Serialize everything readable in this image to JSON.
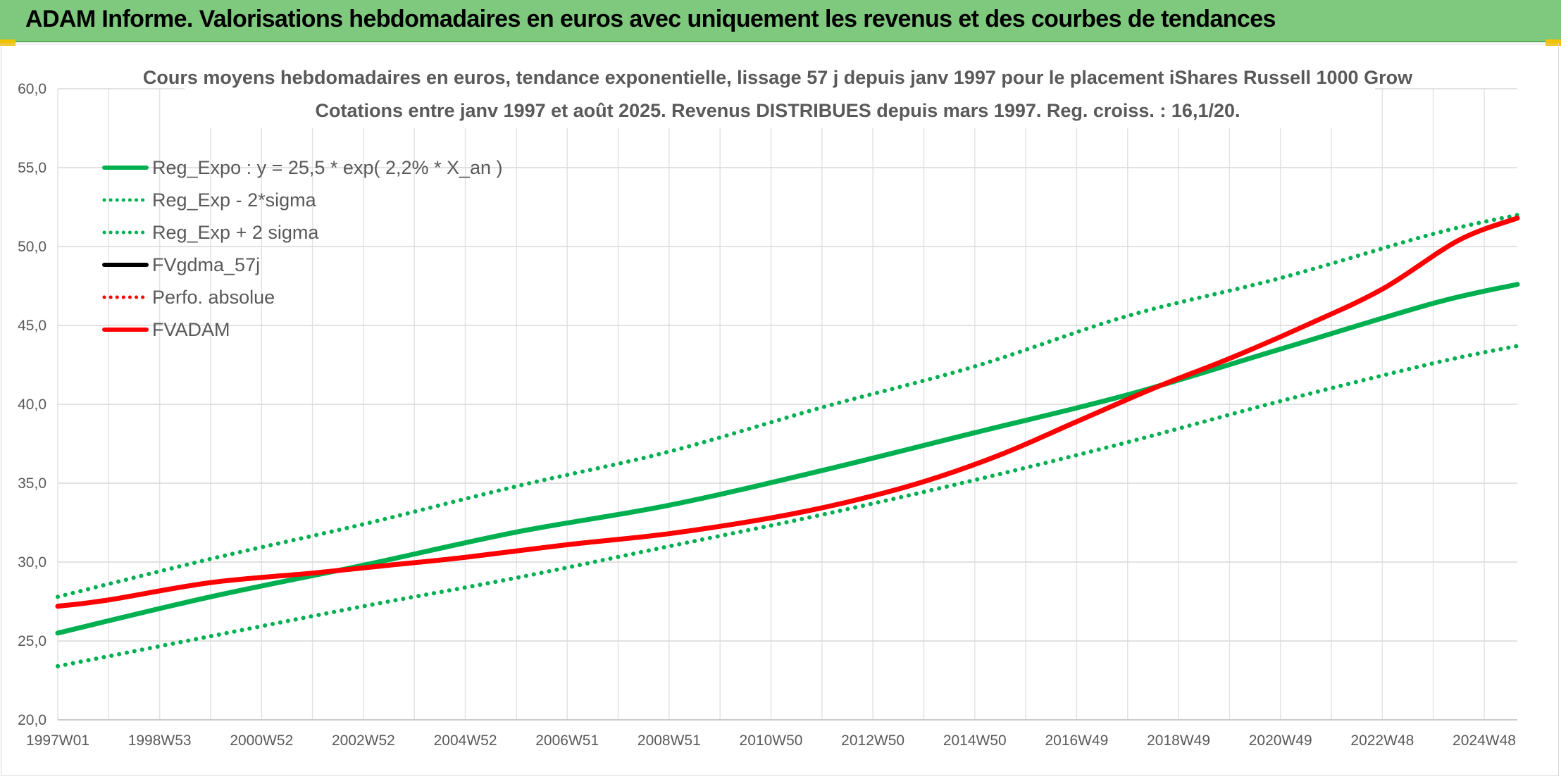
{
  "header": {
    "title": "ADAM Informe. Valorisations hebdomadaires en euros avec uniquement les revenus et des courbes de tendances",
    "background_color": "#7fc97f"
  },
  "chart_data": {
    "type": "line",
    "title": "Cours moyens hebdomadaires en euros, tendance exponentielle, lissage 57 j depuis janv 1997 pour le placement iShares Russell 1000 Grow",
    "subtitle": "Cotations entre janv 1997 et août 2025. Revenus DISTRIBUES depuis mars 1997. Reg. croiss. : 16,1/20.",
    "xlabel": "",
    "ylabel": "",
    "x_range": [
      1997.0,
      2025.65
    ],
    "ylim": [
      20,
      60
    ],
    "y_ticks": [
      "20,0",
      "25,0",
      "30,0",
      "35,0",
      "40,0",
      "45,0",
      "50,0",
      "55,0",
      "60,0"
    ],
    "x_tick_labels": [
      "1997W01",
      "1998W53",
      "2000W52",
      "2002W52",
      "2004W52",
      "2006W51",
      "2008W51",
      "2010W50",
      "2012W50",
      "2014W50",
      "2016W49",
      "2018W49",
      "2020W49",
      "2022W48",
      "2024W48"
    ],
    "x_tick_years": [
      1997.0,
      1999.0,
      2001.0,
      2003.0,
      2005.0,
      2007.0,
      2009.0,
      2011.0,
      2013.0,
      2015.0,
      2017.0,
      2019.0,
      2021.0,
      2023.0,
      2025.0
    ],
    "grid": true,
    "legend_position": "top-left",
    "series": [
      {
        "name": "Reg_Expo : y = 25,5 * exp( 2,2% *  X_an )",
        "color": "#00b050",
        "style": "solid",
        "x": [
          1997.0,
          2000.0,
          2003.0,
          2006.0,
          2009.0,
          2012.0,
          2015.0,
          2018.0,
          2021.0,
          2024.0,
          2025.65
        ],
        "values": [
          25.5,
          27.8,
          29.8,
          31.9,
          33.6,
          35.8,
          38.2,
          40.6,
          43.5,
          46.4,
          47.6
        ]
      },
      {
        "name": "Reg_Exp - 2*sigma",
        "color": "#00b050",
        "style": "dotted",
        "x": [
          1997.0,
          2000.0,
          2003.0,
          2006.0,
          2009.0,
          2012.0,
          2015.0,
          2018.0,
          2021.0,
          2024.0,
          2025.65
        ],
        "values": [
          23.4,
          25.3,
          27.2,
          29.0,
          31.0,
          33.0,
          35.2,
          37.6,
          40.2,
          42.6,
          43.7
        ]
      },
      {
        "name": "Reg_Exp + 2 sigma",
        "color": "#00b050",
        "style": "dotted",
        "x": [
          1997.0,
          2000.0,
          2003.0,
          2006.0,
          2009.0,
          2012.0,
          2015.0,
          2018.0,
          2021.0,
          2024.0,
          2025.65
        ],
        "values": [
          27.8,
          30.2,
          32.4,
          34.8,
          37.0,
          39.8,
          42.4,
          45.6,
          48.0,
          50.8,
          52.0
        ]
      },
      {
        "name": "FVgdma_57j",
        "color": "#000000",
        "style": "solid",
        "x": [],
        "values": []
      },
      {
        "name": "Perfo. absolue",
        "color": "#ff0000",
        "style": "dotted",
        "x": [],
        "values": []
      },
      {
        "name": "FVADAM",
        "color": "#ff0000",
        "style": "solid",
        "x": [
          1997.0,
          1998.0,
          2000.0,
          2002.0,
          2003.5,
          2005.0,
          2007.0,
          2009.0,
          2011.0,
          2012.5,
          2014.0,
          2015.5,
          2017.0,
          2018.5,
          2020.0,
          2021.5,
          2023.0,
          2024.5,
          2025.65
        ],
        "values": [
          27.2,
          27.6,
          28.7,
          29.3,
          29.8,
          30.3,
          31.1,
          31.8,
          32.8,
          33.8,
          35.1,
          36.8,
          38.9,
          41.0,
          42.9,
          45.0,
          47.3,
          50.4,
          51.8
        ]
      }
    ]
  }
}
